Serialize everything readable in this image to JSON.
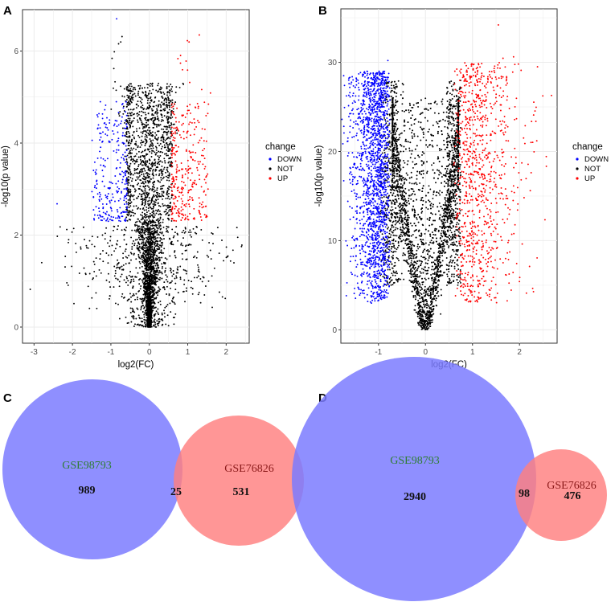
{
  "chart_data": [
    {
      "panel": "A",
      "type": "scatter",
      "xlabel": "log2(FC)",
      "ylabel": "-log10(p value)",
      "xlim": [
        -3.3,
        2.6
      ],
      "ylim": [
        -0.35,
        6.9
      ],
      "xticks": [
        -3,
        -2,
        -1,
        0,
        1,
        2
      ],
      "yticks": [
        0,
        2,
        4,
        6
      ],
      "legend": {
        "title": "change",
        "position": "right",
        "entries": [
          {
            "label": "DOWN",
            "color": "#0000ff"
          },
          {
            "label": "NOT",
            "color": "#000000"
          },
          {
            "label": "UP",
            "color": "#ff0000"
          }
        ]
      },
      "thresholds": {
        "fc": 0.58,
        "p_min": 2.3
      },
      "outliers": [
        {
          "x": -3.1,
          "y": 0.82
        },
        {
          "x": -2.8,
          "y": 1.4
        },
        {
          "x": -2.4,
          "y": 2.68
        },
        {
          "x": -2.1,
          "y": 1.9
        },
        {
          "x": 2.3,
          "y": 1.95
        },
        {
          "x": 2.4,
          "y": 1.75
        },
        {
          "x": -0.85,
          "y": 6.7
        },
        {
          "x": 1.3,
          "y": 6.35
        }
      ]
    },
    {
      "panel": "B",
      "type": "scatter",
      "xlabel": "log2(FC)",
      "ylabel": "-log10(p value)",
      "xlim": [
        -1.8,
        2.8
      ],
      "ylim": [
        -1.5,
        36
      ],
      "xticks": [
        -1,
        0,
        1,
        2
      ],
      "yticks": [
        0,
        10,
        20,
        30
      ],
      "legend": {
        "title": "change",
        "position": "right",
        "entries": [
          {
            "label": "DOWN",
            "color": "#0000ff"
          },
          {
            "label": "NOT",
            "color": "#000000"
          },
          {
            "label": "UP",
            "color": "#ff0000"
          }
        ]
      },
      "thresholds": {
        "fc": 0.58,
        "p_min": 1.3
      }
    },
    {
      "panel": "C",
      "type": "venn",
      "sets": [
        {
          "name": "GSE98793",
          "size": 1014,
          "color": "#7b7bff",
          "label_color": "#2e7d32"
        },
        {
          "name": "GSE76826",
          "size": 556,
          "color": "#ff7f7f",
          "label_color": "#8b1a1a"
        }
      ],
      "regions": {
        "left_only": 989,
        "intersection": 25,
        "right_only": 531
      }
    },
    {
      "panel": "D",
      "type": "venn",
      "sets": [
        {
          "name": "GSE98793",
          "size": 3038,
          "color": "#7b7bff",
          "label_color": "#2e7d32"
        },
        {
          "name": "GSE76826",
          "size": 574,
          "color": "#ff7f7f",
          "label_color": "#8b1a1a"
        }
      ],
      "regions": {
        "left_only": 2940,
        "intersection": 98,
        "right_only": 476
      }
    }
  ]
}
